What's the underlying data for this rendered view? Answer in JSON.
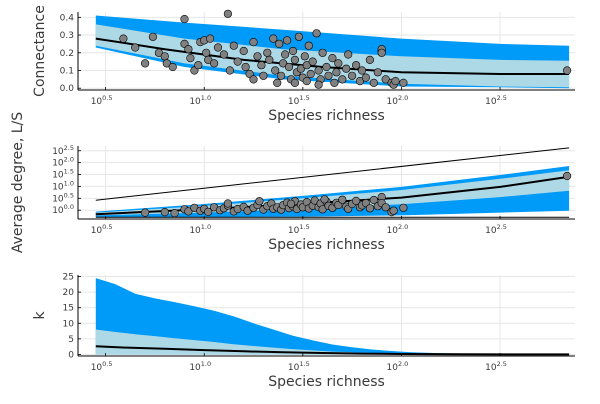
{
  "chart_data": [
    {
      "type": "scatter",
      "xlabel": "Species richness",
      "ylabel": "Connectance",
      "x_scale": "log10",
      "xlim": [
        0.36,
        2.88
      ],
      "ylim": [
        -0.01,
        0.43
      ],
      "x_ticks": [
        {
          "base": "10",
          "exp": "0.5",
          "value": 0.5
        },
        {
          "base": "10",
          "exp": "1.0",
          "value": 1.0
        },
        {
          "base": "10",
          "exp": "1.5",
          "value": 1.5
        },
        {
          "base": "10",
          "exp": "2.0",
          "value": 2.0
        },
        {
          "base": "10",
          "exp": "2.5",
          "value": 2.5
        }
      ],
      "y_ticks": [
        {
          "label": "0.0",
          "value": 0.0
        },
        {
          "label": "0.1",
          "value": 0.1
        },
        {
          "label": "0.2",
          "value": 0.2
        },
        {
          "label": "0.3",
          "value": 0.3
        },
        {
          "label": "0.4",
          "value": 0.4
        }
      ],
      "grid": true,
      "colors": {
        "outer_band": "#009af9",
        "inner_band": "#add8e6",
        "median_line": "#000000",
        "points": "#808080",
        "point_edge": "#000000"
      },
      "outer_band": {
        "x": [
          0.45,
          0.9,
          1.4,
          2.0,
          2.5,
          2.85
        ],
        "upper": [
          0.41,
          0.37,
          0.33,
          0.28,
          0.25,
          0.24
        ],
        "lower": [
          0.23,
          0.12,
          0.05,
          0.01,
          0.005,
          0.0
        ]
      },
      "inner_band": {
        "x": [
          0.45,
          0.9,
          1.4,
          2.0,
          2.5,
          2.85
        ],
        "upper": [
          0.36,
          0.28,
          0.22,
          0.18,
          0.16,
          0.155
        ],
        "lower": [
          0.24,
          0.14,
          0.07,
          0.025,
          0.01,
          0.005
        ]
      },
      "median": {
        "x": [
          0.45,
          0.8,
          1.2,
          1.6,
          2.0,
          2.5,
          2.85
        ],
        "y": [
          0.28,
          0.22,
          0.16,
          0.12,
          0.09,
          0.08,
          0.08
        ]
      },
      "points": [
        [
          0.59,
          0.28
        ],
        [
          0.65,
          0.23
        ],
        [
          0.7,
          0.14
        ],
        [
          0.74,
          0.29
        ],
        [
          0.77,
          0.2
        ],
        [
          0.8,
          0.18
        ],
        [
          0.81,
          0.14
        ],
        [
          0.84,
          0.12
        ],
        [
          0.9,
          0.39
        ],
        [
          0.9,
          0.25
        ],
        [
          0.92,
          0.22
        ],
        [
          0.93,
          0.17
        ],
        [
          0.95,
          0.1
        ],
        [
          0.97,
          0.13
        ],
        [
          0.98,
          0.26
        ],
        [
          1.0,
          0.27
        ],
        [
          1.01,
          0.2
        ],
        [
          1.02,
          0.16
        ],
        [
          1.03,
          0.28
        ],
        [
          1.05,
          0.14
        ],
        [
          1.07,
          0.23
        ],
        [
          1.1,
          0.19
        ],
        [
          1.12,
          0.42
        ],
        [
          1.13,
          0.1
        ],
        [
          1.15,
          0.24
        ],
        [
          1.17,
          0.15
        ],
        [
          1.2,
          0.21
        ],
        [
          1.21,
          0.12
        ],
        [
          1.23,
          0.08
        ],
        [
          1.25,
          0.26
        ],
        [
          1.27,
          0.18
        ],
        [
          1.29,
          0.13
        ],
        [
          1.3,
          0.07
        ],
        [
          1.32,
          0.2
        ],
        [
          1.33,
          0.16
        ],
        [
          1.35,
          0.28
        ],
        [
          1.36,
          0.1
        ],
        [
          1.38,
          0.25
        ],
        [
          1.39,
          0.07
        ],
        [
          1.4,
          0.14
        ],
        [
          1.41,
          0.19
        ],
        [
          1.42,
          0.27
        ],
        [
          1.43,
          0.12
        ],
        [
          1.44,
          0.05
        ],
        [
          1.45,
          0.21
        ],
        [
          1.46,
          0.16
        ],
        [
          1.47,
          0.09
        ],
        [
          1.48,
          0.29
        ],
        [
          1.49,
          0.11
        ],
        [
          1.5,
          0.06
        ],
        [
          1.51,
          0.18
        ],
        [
          1.52,
          0.13
        ],
        [
          1.53,
          0.24
        ],
        [
          1.54,
          0.08
        ],
        [
          1.55,
          0.15
        ],
        [
          1.57,
          0.31
        ],
        [
          1.58,
          0.1
        ],
        [
          1.59,
          0.05
        ],
        [
          1.6,
          0.2
        ],
        [
          1.62,
          0.12
        ],
        [
          1.63,
          0.07
        ],
        [
          1.65,
          0.17
        ],
        [
          1.67,
          0.09
        ],
        [
          1.68,
          0.14
        ],
        [
          1.7,
          0.05
        ],
        [
          1.72,
          0.11
        ],
        [
          1.73,
          0.19
        ],
        [
          1.75,
          0.07
        ],
        [
          1.77,
          0.13
        ],
        [
          1.79,
          0.04
        ],
        [
          1.8,
          0.1
        ],
        [
          1.82,
          0.06
        ],
        [
          1.84,
          0.16
        ],
        [
          1.86,
          0.03
        ],
        [
          1.88,
          0.09
        ],
        [
          1.9,
          0.21
        ],
        [
          1.9,
          0.22
        ],
        [
          1.9,
          0.2
        ],
        [
          1.92,
          0.05
        ],
        [
          1.95,
          0.03
        ],
        [
          1.96,
          0.02
        ],
        [
          1.97,
          0.04
        ],
        [
          2.01,
          0.03
        ],
        [
          2.84,
          0.1
        ],
        [
          1.25,
          0.05
        ],
        [
          1.37,
          0.03
        ],
        [
          1.46,
          0.03
        ],
        [
          1.52,
          0.04
        ],
        [
          1.58,
          0.02
        ],
        [
          1.66,
          0.03
        ]
      ]
    },
    {
      "type": "scatter",
      "xlabel": "Species richness",
      "ylabel": "Average degree, L/S",
      "x_scale": "log10",
      "y_scale": "log10",
      "xlim": [
        0.36,
        2.88
      ],
      "ylim": [
        -0.37,
        2.7
      ],
      "x_ticks": [
        {
          "base": "10",
          "exp": "0.5",
          "value": 0.5
        },
        {
          "base": "10",
          "exp": "1.0",
          "value": 1.0
        },
        {
          "base": "10",
          "exp": "1.5",
          "value": 1.5
        },
        {
          "base": "10",
          "exp": "2.0",
          "value": 2.0
        },
        {
          "base": "10",
          "exp": "2.5",
          "value": 2.5
        }
      ],
      "y_ticks": [
        {
          "base": "10",
          "exp": "0.0",
          "value": 0.0
        },
        {
          "base": "10",
          "exp": "0.5",
          "value": 0.5
        },
        {
          "base": "10",
          "exp": "1.0",
          "value": 1.0
        },
        {
          "base": "10",
          "exp": "1.5",
          "value": 1.5
        },
        {
          "base": "10",
          "exp": "2.0",
          "value": 2.0
        },
        {
          "base": "10",
          "exp": "2.5",
          "value": 2.5
        }
      ],
      "grid": true,
      "colors": {
        "outer_band": "#009af9",
        "inner_band": "#add8e6",
        "median_line": "#000000",
        "points": "#808080",
        "point_edge": "#000000"
      },
      "reference_lines": [
        {
          "x": [
            0.45,
            2.85
          ],
          "y": [
            0.42,
            2.62
          ]
        },
        {
          "x": [
            0.45,
            2.85
          ],
          "y": [
            -0.3,
            -0.3
          ]
        }
      ],
      "outer_band": {
        "x": [
          0.45,
          1.0,
          1.5,
          2.0,
          2.5,
          2.85
        ],
        "upper": [
          -0.06,
          0.26,
          0.6,
          0.98,
          1.48,
          1.86
        ],
        "lower": [
          -0.3,
          -0.29,
          -0.27,
          -0.22,
          -0.1,
          -0.02
        ]
      },
      "inner_band": {
        "x": [
          0.45,
          1.0,
          1.5,
          2.0,
          2.5,
          2.85
        ],
        "upper": [
          -0.1,
          0.18,
          0.5,
          0.85,
          1.32,
          1.68
        ],
        "lower": [
          -0.22,
          -0.1,
          0.05,
          0.25,
          0.55,
          0.82
        ]
      },
      "median": {
        "x": [
          0.45,
          1.0,
          1.5,
          2.0,
          2.5,
          2.85
        ],
        "y": [
          -0.17,
          0.04,
          0.27,
          0.53,
          0.98,
          1.41
        ]
      },
      "points": [
        [
          0.7,
          -0.1
        ],
        [
          0.8,
          -0.08
        ],
        [
          0.85,
          -0.12
        ],
        [
          0.9,
          0.04
        ],
        [
          0.92,
          -0.05
        ],
        [
          0.95,
          0.1
        ],
        [
          0.98,
          -0.02
        ],
        [
          1.0,
          0.06
        ],
        [
          1.02,
          -0.07
        ],
        [
          1.05,
          0.12
        ],
        [
          1.08,
          0.0
        ],
        [
          1.1,
          0.08
        ],
        [
          1.12,
          0.19
        ],
        [
          1.15,
          -0.05
        ],
        [
          1.17,
          0.05
        ],
        [
          1.2,
          0.14
        ],
        [
          1.22,
          -0.02
        ],
        [
          1.25,
          0.1
        ],
        [
          1.27,
          0.22
        ],
        [
          1.3,
          0.03
        ],
        [
          1.32,
          0.17
        ],
        [
          1.34,
          0.28
        ],
        [
          1.35,
          0.06
        ],
        [
          1.37,
          0.12
        ],
        [
          1.39,
          0.02
        ],
        [
          1.4,
          0.21
        ],
        [
          1.42,
          0.32
        ],
        [
          1.43,
          0.09
        ],
        [
          1.45,
          0.16
        ],
        [
          1.46,
          0.38
        ],
        [
          1.47,
          0.05
        ],
        [
          1.49,
          0.24
        ],
        [
          1.5,
          0.12
        ],
        [
          1.52,
          0.34
        ],
        [
          1.53,
          0.07
        ],
        [
          1.55,
          0.19
        ],
        [
          1.56,
          0.41
        ],
        [
          1.58,
          0.13
        ],
        [
          1.59,
          0.28
        ],
        [
          1.6,
          0.04
        ],
        [
          1.62,
          0.36
        ],
        [
          1.63,
          0.18
        ],
        [
          1.65,
          0.1
        ],
        [
          1.67,
          0.31
        ],
        [
          1.68,
          0.22
        ],
        [
          1.7,
          0.44
        ],
        [
          1.72,
          0.15
        ],
        [
          1.73,
          0.06
        ],
        [
          1.75,
          0.26
        ],
        [
          1.77,
          0.39
        ],
        [
          1.79,
          0.12
        ],
        [
          1.8,
          0.2
        ],
        [
          1.82,
          0.3
        ],
        [
          1.84,
          0.08
        ],
        [
          1.86,
          0.43
        ],
        [
          1.88,
          0.17
        ],
        [
          1.9,
          0.55
        ],
        [
          1.9,
          0.3
        ],
        [
          1.92,
          0.12
        ],
        [
          1.95,
          -0.08
        ],
        [
          1.96,
          -0.02
        ],
        [
          2.01,
          0.1
        ],
        [
          2.84,
          1.44
        ],
        [
          1.12,
          0.28
        ],
        [
          1.28,
          0.38
        ],
        [
          1.44,
          0.27
        ],
        [
          1.61,
          0.46
        ]
      ]
    },
    {
      "type": "area",
      "xlabel": "Species richness",
      "ylabel": "k",
      "x_scale": "log10",
      "xlim": [
        0.36,
        2.88
      ],
      "ylim": [
        -0.5,
        25.5
      ],
      "x_ticks": [
        {
          "base": "10",
          "exp": "0.5",
          "value": 0.5
        },
        {
          "base": "10",
          "exp": "1.0",
          "value": 1.0
        },
        {
          "base": "10",
          "exp": "1.5",
          "value": 1.5
        },
        {
          "base": "10",
          "exp": "2.0",
          "value": 2.0
        },
        {
          "base": "10",
          "exp": "2.5",
          "value": 2.5
        }
      ],
      "y_ticks": [
        {
          "label": "0",
          "value": 0
        },
        {
          "label": "5",
          "value": 5
        },
        {
          "label": "10",
          "value": 10
        },
        {
          "label": "15",
          "value": 15
        },
        {
          "label": "20",
          "value": 20
        },
        {
          "label": "25",
          "value": 25
        }
      ],
      "grid": true,
      "colors": {
        "outer_band": "#009af9",
        "inner_band": "#add8e6",
        "median_line": "#000000"
      },
      "outer_band": {
        "x": [
          0.45,
          0.55,
          0.65,
          0.75,
          0.85,
          0.95,
          1.05,
          1.15,
          1.25,
          1.35,
          1.45,
          1.55,
          1.65,
          1.75,
          1.85,
          1.95,
          2.05,
          2.2,
          2.4,
          2.6,
          2.85
        ],
        "upper": [
          24.5,
          22.5,
          19.5,
          18.0,
          16.8,
          15.5,
          14.0,
          12.2,
          10.0,
          8.0,
          6.0,
          4.5,
          3.2,
          2.3,
          1.6,
          1.1,
          0.7,
          0.4,
          0.2,
          0.1,
          0.05
        ],
        "lower": [
          0,
          0,
          0,
          0,
          0,
          0,
          0,
          0,
          0,
          0,
          0,
          0,
          0,
          0,
          0,
          0,
          0,
          0,
          0,
          0,
          0
        ]
      },
      "inner_band": {
        "x": [
          0.45,
          0.55,
          0.65,
          0.75,
          0.85,
          0.95,
          1.05,
          1.15,
          1.25,
          1.35,
          1.45,
          1.55,
          1.65,
          1.75,
          1.85,
          1.95,
          2.05,
          2.2,
          2.4,
          2.6,
          2.85
        ],
        "upper": [
          8.0,
          7.2,
          6.5,
          5.9,
          5.2,
          4.6,
          4.0,
          3.3,
          2.7,
          2.2,
          1.7,
          1.3,
          0.9,
          0.7,
          0.5,
          0.35,
          0.25,
          0.15,
          0.08,
          0.04,
          0.02
        ],
        "lower": [
          0,
          0,
          0,
          0,
          0,
          0,
          0,
          0,
          0,
          0,
          0,
          0,
          0,
          0,
          0,
          0,
          0,
          0,
          0,
          0,
          0
        ]
      },
      "median": {
        "x": [
          0.45,
          0.6,
          0.8,
          1.0,
          1.2,
          1.4,
          1.6,
          1.8,
          2.0,
          2.3,
          2.6,
          2.85
        ],
        "y": [
          2.6,
          2.2,
          1.8,
          1.4,
          1.0,
          0.7,
          0.45,
          0.28,
          0.15,
          0.06,
          0.02,
          0.01
        ]
      }
    }
  ]
}
